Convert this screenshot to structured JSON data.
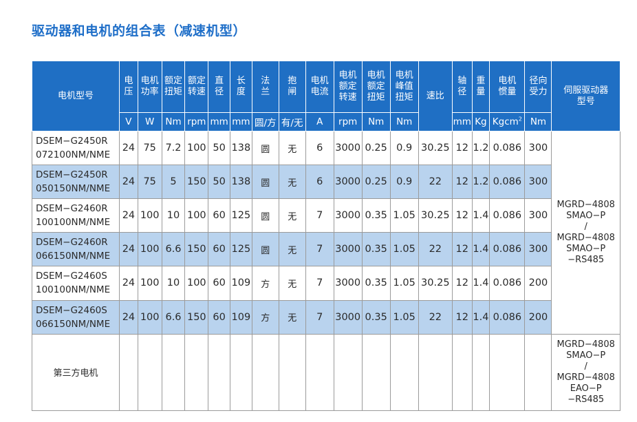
{
  "title": "驱动器和电机的组合表（减速机型）",
  "table": {
    "headers": [
      {
        "key": "model",
        "label": "电机型号",
        "unit": ""
      },
      {
        "key": "voltage",
        "label": "电压",
        "unit": "V"
      },
      {
        "key": "power",
        "label": "电机功率",
        "unit": "W"
      },
      {
        "key": "rated_torque",
        "label": "额定扭矩",
        "unit": "Nm"
      },
      {
        "key": "rated_speed",
        "label": "额定转速",
        "unit": "rpm"
      },
      {
        "key": "diameter",
        "label": "直径",
        "unit": "mm"
      },
      {
        "key": "length",
        "label": "长度",
        "unit": "mm"
      },
      {
        "key": "flange",
        "label": "法兰",
        "unit": "圆/方"
      },
      {
        "key": "brake",
        "label": "抱闸",
        "unit": "有/无"
      },
      {
        "key": "current",
        "label": "电机电流",
        "unit": "A"
      },
      {
        "key": "motor_rated_speed",
        "label": "电机额定转速",
        "unit": "rpm"
      },
      {
        "key": "motor_rated_torque",
        "label": "电机额定扭矩",
        "unit": "Nm"
      },
      {
        "key": "motor_peak_torque",
        "label": "电机峰值扭矩",
        "unit": "Nm"
      },
      {
        "key": "ratio",
        "label": "速比",
        "unit": ""
      },
      {
        "key": "shaft",
        "label": "轴径",
        "unit": "mm"
      },
      {
        "key": "weight",
        "label": "重量",
        "unit": "Kg"
      },
      {
        "key": "inertia",
        "label": "电机惯量",
        "unit": "Kgcm",
        "unit_sup": "2"
      },
      {
        "key": "radial",
        "label": "径向受力",
        "unit": "Nm"
      },
      {
        "key": "driver",
        "label": "伺服驱动器型号",
        "unit": ""
      }
    ],
    "rows": [
      {
        "model_l1": "DSEM−G2450R",
        "model_l2": "072100NM/NME",
        "voltage": "24",
        "power": "75",
        "rated_torque": "7.2",
        "rated_speed": "100",
        "diameter": "50",
        "length": "138",
        "flange": "圆",
        "brake": "无",
        "current": "6",
        "motor_rated_speed": "3000",
        "motor_rated_torque": "0.25",
        "motor_peak_torque": "0.9",
        "ratio": "30.25",
        "shaft": "12",
        "weight": "1.2",
        "inertia": "0.086",
        "radial": "300"
      },
      {
        "model_l1": "DSEM−G2450R",
        "model_l2": "050150NM/NME",
        "voltage": "24",
        "power": "75",
        "rated_torque": "5",
        "rated_speed": "150",
        "diameter": "50",
        "length": "138",
        "flange": "圆",
        "brake": "无",
        "current": "6",
        "motor_rated_speed": "3000",
        "motor_rated_torque": "0.25",
        "motor_peak_torque": "0.9",
        "ratio": "22",
        "shaft": "12",
        "weight": "1.2",
        "inertia": "0.086",
        "radial": "300"
      },
      {
        "model_l1": "DSEM−G2460R",
        "model_l2": "100100NM/NME",
        "voltage": "24",
        "power": "100",
        "rated_torque": "10",
        "rated_speed": "100",
        "diameter": "60",
        "length": "125",
        "flange": "圆",
        "brake": "无",
        "current": "7",
        "motor_rated_speed": "3000",
        "motor_rated_torque": "0.35",
        "motor_peak_torque": "1.05",
        "ratio": "30.25",
        "shaft": "12",
        "weight": "1.4",
        "inertia": "0.086",
        "radial": "300"
      },
      {
        "model_l1": "DSEM−G2460R",
        "model_l2": "066150NM/NME",
        "voltage": "24",
        "power": "100",
        "rated_torque": "6.6",
        "rated_speed": "150",
        "diameter": "60",
        "length": "125",
        "flange": "圆",
        "brake": "无",
        "current": "7",
        "motor_rated_speed": "3000",
        "motor_rated_torque": "0.35",
        "motor_peak_torque": "1.05",
        "ratio": "22",
        "shaft": "12",
        "weight": "1.4",
        "inertia": "0.086",
        "radial": "300"
      },
      {
        "model_l1": "DSEM−G2460S",
        "model_l2": "100100NM/NME",
        "voltage": "24",
        "power": "100",
        "rated_torque": "10",
        "rated_speed": "100",
        "diameter": "60",
        "length": "109",
        "flange": "方",
        "brake": "无",
        "current": "7",
        "motor_rated_speed": "3000",
        "motor_rated_torque": "0.35",
        "motor_peak_torque": "1.05",
        "ratio": "30.25",
        "shaft": "12",
        "weight": "1.4",
        "inertia": "0.086",
        "radial": "200"
      },
      {
        "model_l1": "DSEM−G2460S",
        "model_l2": "066150NM/NME",
        "voltage": "24",
        "power": "100",
        "rated_torque": "6.6",
        "rated_speed": "150",
        "diameter": "60",
        "length": "109",
        "flange": "方",
        "brake": "无",
        "current": "7",
        "motor_rated_speed": "3000",
        "motor_rated_torque": "0.35",
        "motor_peak_torque": "1.05",
        "ratio": "22",
        "shaft": "12",
        "weight": "1.4",
        "inertia": "0.086",
        "radial": "200"
      }
    ],
    "driver_group1": [
      "MGRD−4808",
      "SMAO−P",
      "/",
      "MGRD−4808",
      "SMAO−P",
      "−RS485"
    ],
    "third_party": {
      "model": "第三方电机",
      "driver": [
        "MGRD−4808",
        "SMAO−P",
        "/",
        "MGRD−4808",
        "EAO−P",
        "−RS485"
      ]
    }
  }
}
